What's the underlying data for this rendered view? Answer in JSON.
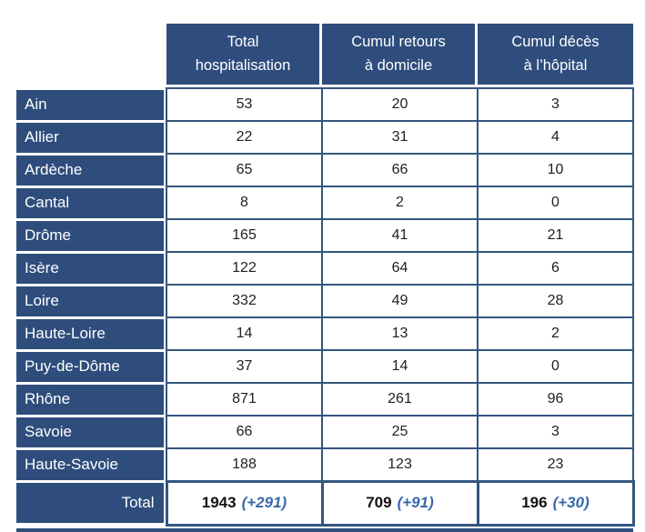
{
  "chart_data": {
    "type": "table",
    "title": "",
    "column_headers": [
      "Total hospitalisation",
      "Cumul retours à domicile",
      "Cumul décès à l’hôpital"
    ],
    "rows": [
      {
        "label": "Ain",
        "values": [
          53,
          20,
          3
        ]
      },
      {
        "label": "Allier",
        "values": [
          22,
          31,
          4
        ]
      },
      {
        "label": "Ardèche",
        "values": [
          65,
          66,
          10
        ]
      },
      {
        "label": "Cantal",
        "values": [
          8,
          2,
          0
        ]
      },
      {
        "label": "Drôme",
        "values": [
          165,
          41,
          21
        ]
      },
      {
        "label": "Isère",
        "values": [
          122,
          64,
          6
        ]
      },
      {
        "label": "Loire",
        "values": [
          332,
          49,
          28
        ]
      },
      {
        "label": "Haute-Loire",
        "values": [
          14,
          13,
          2
        ]
      },
      {
        "label": "Puy-de-Dôme",
        "values": [
          37,
          14,
          0
        ]
      },
      {
        "label": "Rhône",
        "values": [
          871,
          261,
          96
        ]
      },
      {
        "label": "Savoie",
        "values": [
          66,
          25,
          3
        ]
      },
      {
        "label": "Haute-Savoie",
        "values": [
          188,
          123,
          23
        ]
      }
    ],
    "total": {
      "label": "Total",
      "columns": [
        {
          "value": "1943",
          "delta": "(+291)"
        },
        {
          "value": "709",
          "delta": "(+91)"
        },
        {
          "value": "196",
          "delta": "(+30)"
        }
      ]
    }
  },
  "table_display": {
    "headers": [
      {
        "line1": "Total",
        "line2": "hospitalisation"
      },
      {
        "line1": "Cumul retours",
        "line2": "à domicile"
      },
      {
        "line1": "Cumul décès",
        "line2": "à l’hôpital"
      }
    ]
  },
  "colors": {
    "navy": "#2e4d7c",
    "cell_border": "#33567f",
    "delta_blue": "#3a68ab"
  }
}
